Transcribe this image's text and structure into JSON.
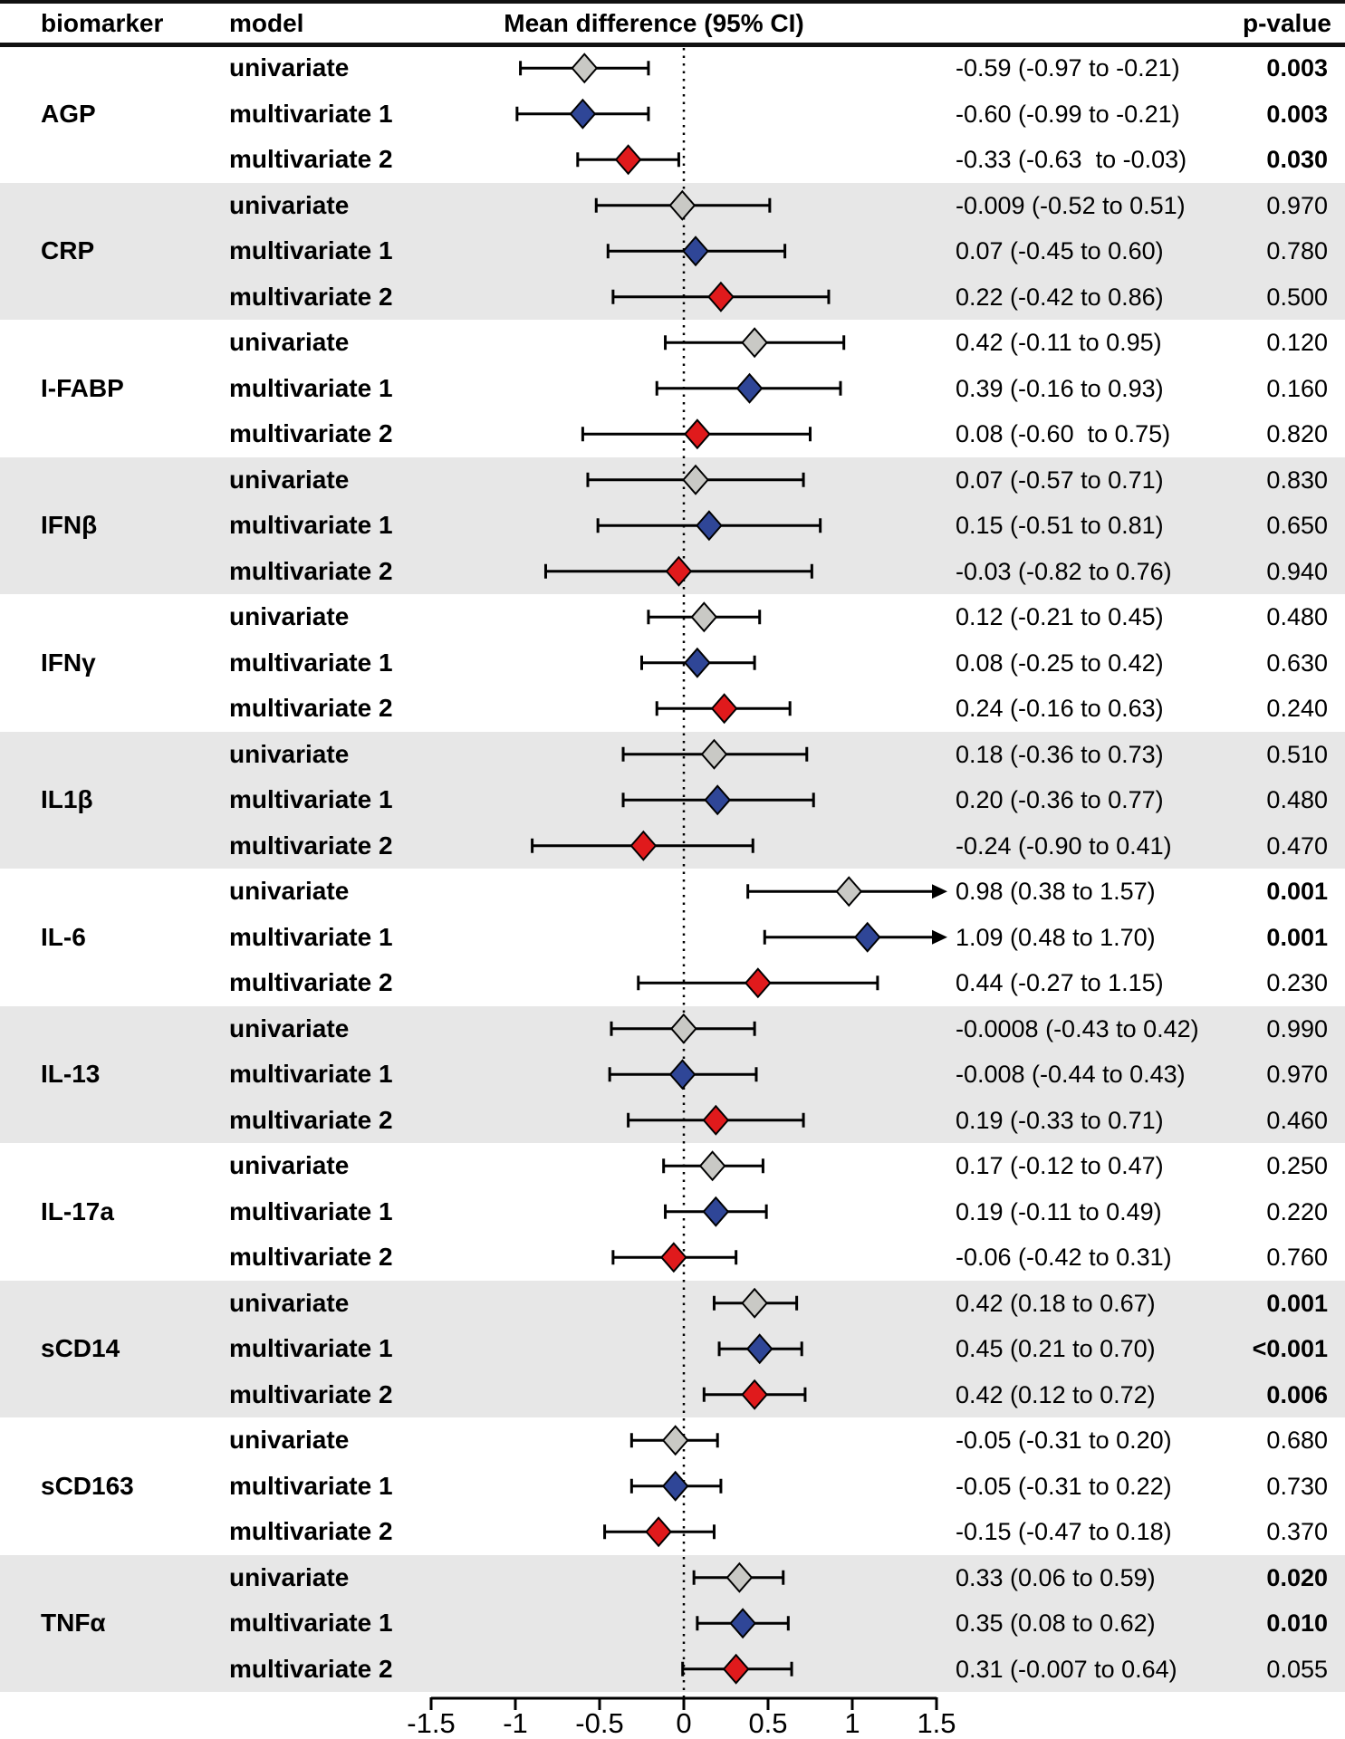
{
  "header": {
    "biomarker": "biomarker",
    "model": "model",
    "mean_diff": "Mean difference (95% CI)",
    "p_value": "p-value"
  },
  "colors": {
    "gray": "#c9c9c5",
    "blue": "#2f4697",
    "red": "#e01a1c",
    "band_shade": "#e7e7e7",
    "ink": "#000000"
  },
  "axis": {
    "min": -1.5,
    "max": 1.5,
    "zero_line": 0,
    "ticks": [
      -1.5,
      -1,
      -0.5,
      0,
      0.5,
      1,
      1.5
    ],
    "tick_labels": [
      "-1.5",
      "-1",
      "-0.5",
      "0",
      "0.5",
      "1",
      "1.5"
    ]
  },
  "chart_data": {
    "type": "forest",
    "title": "Mean difference (95% CI)",
    "xlim": [
      -1.5,
      1.5
    ],
    "models_legend": [
      "univariate",
      "multivariate 1",
      "multivariate 2"
    ],
    "groups": [
      {
        "biomarker": "AGP",
        "shaded": false,
        "rows": [
          {
            "model": "univariate",
            "mean": -0.59,
            "lo": -0.97,
            "hi": -0.21,
            "label": "-0.59 (-0.97 to -0.21)",
            "p": "0.003",
            "p_bold": true,
            "arrow": false,
            "color": "gray"
          },
          {
            "model": "multivariate 1",
            "mean": -0.6,
            "lo": -0.99,
            "hi": -0.21,
            "label": "-0.60 (-0.99 to -0.21)",
            "p": "0.003",
            "p_bold": true,
            "arrow": false,
            "color": "blue"
          },
          {
            "model": "multivariate 2",
            "mean": -0.33,
            "lo": -0.63,
            "hi": -0.03,
            "label": "-0.33 (-0.63  to -0.03)",
            "p": "0.030",
            "p_bold": true,
            "arrow": false,
            "color": "red"
          }
        ]
      },
      {
        "biomarker": "CRP",
        "shaded": true,
        "rows": [
          {
            "model": "univariate",
            "mean": -0.009,
            "lo": -0.52,
            "hi": 0.51,
            "label": "-0.009 (-0.52 to 0.51)",
            "p": "0.970",
            "p_bold": false,
            "arrow": false,
            "color": "gray"
          },
          {
            "model": "multivariate 1",
            "mean": 0.07,
            "lo": -0.45,
            "hi": 0.6,
            "label": "0.07 (-0.45 to 0.60)",
            "p": "0.780",
            "p_bold": false,
            "arrow": false,
            "color": "blue"
          },
          {
            "model": "multivariate 2",
            "mean": 0.22,
            "lo": -0.42,
            "hi": 0.86,
            "label": "0.22 (-0.42 to 0.86)",
            "p": "0.500",
            "p_bold": false,
            "arrow": false,
            "color": "red"
          }
        ]
      },
      {
        "biomarker": "I-FABP",
        "shaded": false,
        "rows": [
          {
            "model": "univariate",
            "mean": 0.42,
            "lo": -0.11,
            "hi": 0.95,
            "label": "0.42 (-0.11 to 0.95)",
            "p": "0.120",
            "p_bold": false,
            "arrow": false,
            "color": "gray"
          },
          {
            "model": "multivariate 1",
            "mean": 0.39,
            "lo": -0.16,
            "hi": 0.93,
            "label": "0.39 (-0.16 to 0.93)",
            "p": "0.160",
            "p_bold": false,
            "arrow": false,
            "color": "blue"
          },
          {
            "model": "multivariate 2",
            "mean": 0.08,
            "lo": -0.6,
            "hi": 0.75,
            "label": "0.08 (-0.60  to 0.75)",
            "p": "0.820",
            "p_bold": false,
            "arrow": false,
            "color": "red"
          }
        ]
      },
      {
        "biomarker": "IFNβ",
        "shaded": true,
        "rows": [
          {
            "model": "univariate",
            "mean": 0.07,
            "lo": -0.57,
            "hi": 0.71,
            "label": "0.07 (-0.57 to 0.71)",
            "p": "0.830",
            "p_bold": false,
            "arrow": false,
            "color": "gray"
          },
          {
            "model": "multivariate 1",
            "mean": 0.15,
            "lo": -0.51,
            "hi": 0.81,
            "label": "0.15 (-0.51 to 0.81)",
            "p": "0.650",
            "p_bold": false,
            "arrow": false,
            "color": "blue"
          },
          {
            "model": "multivariate 2",
            "mean": -0.03,
            "lo": -0.82,
            "hi": 0.76,
            "label": "-0.03 (-0.82 to 0.76)",
            "p": "0.940",
            "p_bold": false,
            "arrow": false,
            "color": "red"
          }
        ]
      },
      {
        "biomarker": "IFNγ",
        "shaded": false,
        "rows": [
          {
            "model": "univariate",
            "mean": 0.12,
            "lo": -0.21,
            "hi": 0.45,
            "label": "0.12 (-0.21 to 0.45)",
            "p": "0.480",
            "p_bold": false,
            "arrow": false,
            "color": "gray"
          },
          {
            "model": "multivariate 1",
            "mean": 0.08,
            "lo": -0.25,
            "hi": 0.42,
            "label": "0.08 (-0.25 to 0.42)",
            "p": "0.630",
            "p_bold": false,
            "arrow": false,
            "color": "blue"
          },
          {
            "model": "multivariate 2",
            "mean": 0.24,
            "lo": -0.16,
            "hi": 0.63,
            "label": "0.24 (-0.16 to 0.63)",
            "p": "0.240",
            "p_bold": false,
            "arrow": false,
            "color": "red"
          }
        ]
      },
      {
        "biomarker": "IL1β",
        "shaded": true,
        "rows": [
          {
            "model": "univariate",
            "mean": 0.18,
            "lo": -0.36,
            "hi": 0.73,
            "label": "0.18 (-0.36 to 0.73)",
            "p": "0.510",
            "p_bold": false,
            "arrow": false,
            "color": "gray"
          },
          {
            "model": "multivariate 1",
            "mean": 0.2,
            "lo": -0.36,
            "hi": 0.77,
            "label": "0.20 (-0.36 to 0.77)",
            "p": "0.480",
            "p_bold": false,
            "arrow": false,
            "color": "blue"
          },
          {
            "model": "multivariate 2",
            "mean": -0.24,
            "lo": -0.9,
            "hi": 0.41,
            "label": "-0.24 (-0.90 to 0.41)",
            "p": "0.470",
            "p_bold": false,
            "arrow": false,
            "color": "red"
          }
        ]
      },
      {
        "biomarker": "IL-6",
        "shaded": false,
        "rows": [
          {
            "model": "univariate",
            "mean": 0.98,
            "lo": 0.38,
            "hi": 1.57,
            "label": "0.98 (0.38 to 1.57)",
            "p": "0.001",
            "p_bold": true,
            "arrow": true,
            "color": "gray"
          },
          {
            "model": "multivariate 1",
            "mean": 1.09,
            "lo": 0.48,
            "hi": 1.7,
            "label": "1.09 (0.48 to 1.70)",
            "p": "0.001",
            "p_bold": true,
            "arrow": true,
            "color": "blue"
          },
          {
            "model": "multivariate 2",
            "mean": 0.44,
            "lo": -0.27,
            "hi": 1.15,
            "label": "0.44 (-0.27 to 1.15)",
            "p": "0.230",
            "p_bold": false,
            "arrow": false,
            "color": "red"
          }
        ]
      },
      {
        "biomarker": "IL-13",
        "shaded": true,
        "rows": [
          {
            "model": "univariate",
            "mean": -0.0008,
            "lo": -0.43,
            "hi": 0.42,
            "label": "-0.0008 (-0.43 to 0.42)",
            "p": "0.990",
            "p_bold": false,
            "arrow": false,
            "color": "gray"
          },
          {
            "model": "multivariate 1",
            "mean": -0.008,
            "lo": -0.44,
            "hi": 0.43,
            "label": "-0.008 (-0.44 to 0.43)",
            "p": "0.970",
            "p_bold": false,
            "arrow": false,
            "color": "blue"
          },
          {
            "model": "multivariate 2",
            "mean": 0.19,
            "lo": -0.33,
            "hi": 0.71,
            "label": "0.19 (-0.33 to 0.71)",
            "p": "0.460",
            "p_bold": false,
            "arrow": false,
            "color": "red"
          }
        ]
      },
      {
        "biomarker": "IL-17a",
        "shaded": false,
        "rows": [
          {
            "model": "univariate",
            "mean": 0.17,
            "lo": -0.12,
            "hi": 0.47,
            "label": "0.17 (-0.12 to 0.47)",
            "p": "0.250",
            "p_bold": false,
            "arrow": false,
            "color": "gray"
          },
          {
            "model": "multivariate 1",
            "mean": 0.19,
            "lo": -0.11,
            "hi": 0.49,
            "label": "0.19 (-0.11 to 0.49)",
            "p": "0.220",
            "p_bold": false,
            "arrow": false,
            "color": "blue"
          },
          {
            "model": "multivariate 2",
            "mean": -0.06,
            "lo": -0.42,
            "hi": 0.31,
            "label": "-0.06 (-0.42 to 0.31)",
            "p": "0.760",
            "p_bold": false,
            "arrow": false,
            "color": "red"
          }
        ]
      },
      {
        "biomarker": "sCD14",
        "shaded": true,
        "rows": [
          {
            "model": "univariate",
            "mean": 0.42,
            "lo": 0.18,
            "hi": 0.67,
            "label": "0.42 (0.18 to 0.67)",
            "p": "0.001",
            "p_bold": true,
            "arrow": false,
            "color": "gray"
          },
          {
            "model": "multivariate 1",
            "mean": 0.45,
            "lo": 0.21,
            "hi": 0.7,
            "label": "0.45 (0.21 to 0.70)",
            "p": "<0.001",
            "p_bold": true,
            "arrow": false,
            "color": "blue"
          },
          {
            "model": "multivariate 2",
            "mean": 0.42,
            "lo": 0.12,
            "hi": 0.72,
            "label": "0.42 (0.12 to 0.72)",
            "p": "0.006",
            "p_bold": true,
            "arrow": false,
            "color": "red"
          }
        ]
      },
      {
        "biomarker": "sCD163",
        "shaded": false,
        "rows": [
          {
            "model": "univariate",
            "mean": -0.05,
            "lo": -0.31,
            "hi": 0.2,
            "label": "-0.05 (-0.31 to 0.20)",
            "p": "0.680",
            "p_bold": false,
            "arrow": false,
            "color": "gray"
          },
          {
            "model": "multivariate 1",
            "mean": -0.05,
            "lo": -0.31,
            "hi": 0.22,
            "label": "-0.05 (-0.31 to 0.22)",
            "p": "0.730",
            "p_bold": false,
            "arrow": false,
            "color": "blue"
          },
          {
            "model": "multivariate 2",
            "mean": -0.15,
            "lo": -0.47,
            "hi": 0.18,
            "label": "-0.15 (-0.47 to 0.18)",
            "p": "0.370",
            "p_bold": false,
            "arrow": false,
            "color": "red"
          }
        ]
      },
      {
        "biomarker": "TNFα",
        "shaded": true,
        "rows": [
          {
            "model": "univariate",
            "mean": 0.33,
            "lo": 0.06,
            "hi": 0.59,
            "label": "0.33 (0.06 to 0.59)",
            "p": "0.020",
            "p_bold": true,
            "arrow": false,
            "color": "gray"
          },
          {
            "model": "multivariate 1",
            "mean": 0.35,
            "lo": 0.08,
            "hi": 0.62,
            "label": "0.35 (0.08 to 0.62)",
            "p": "0.010",
            "p_bold": true,
            "arrow": false,
            "color": "blue"
          },
          {
            "model": "multivariate 2",
            "mean": 0.31,
            "lo": -0.007,
            "hi": 0.64,
            "label": "0.31 (-0.007 to 0.64)",
            "p": "0.055",
            "p_bold": false,
            "arrow": false,
            "color": "red"
          }
        ]
      }
    ]
  }
}
